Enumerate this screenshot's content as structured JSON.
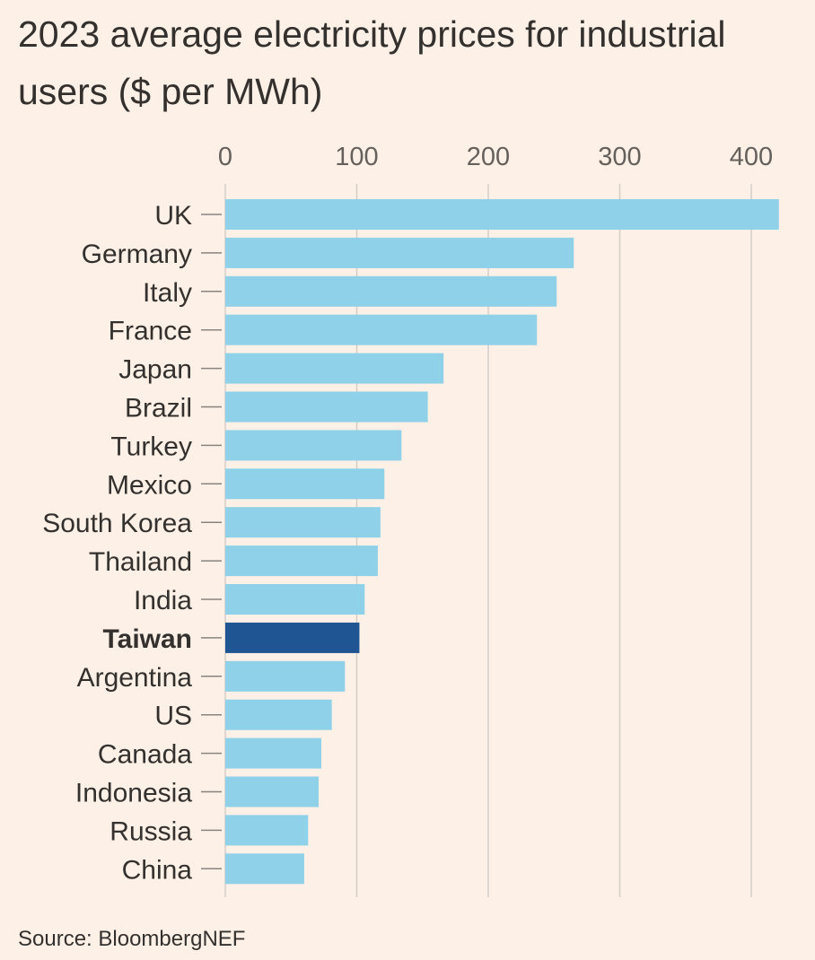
{
  "chart_data": {
    "type": "bar",
    "orientation": "horizontal",
    "title": "2023 average electricity prices for industrial users ($ per MWh)",
    "source": "Source: BloombergNEF",
    "categories": [
      "UK",
      "Germany",
      "Italy",
      "France",
      "Japan",
      "Brazil",
      "Turkey",
      "Mexico",
      "South Korea",
      "Thailand",
      "India",
      "Taiwan",
      "Argentina",
      "US",
      "Canada",
      "Indonesia",
      "Russia",
      "China"
    ],
    "values": [
      421,
      265,
      252,
      237,
      166,
      154,
      134,
      121,
      118,
      116,
      106,
      102,
      91,
      81,
      73,
      71,
      63,
      60
    ],
    "highlight": "Taiwan",
    "xticks": [
      0,
      100,
      200,
      300,
      400
    ],
    "xlim": [
      0,
      430
    ],
    "grid": true,
    "axis_position": "top",
    "colors": {
      "bar": "#8fd1e8",
      "highlight": "#1f5592",
      "grid": "#d3cdc8",
      "background": "#fdf0e6"
    }
  }
}
